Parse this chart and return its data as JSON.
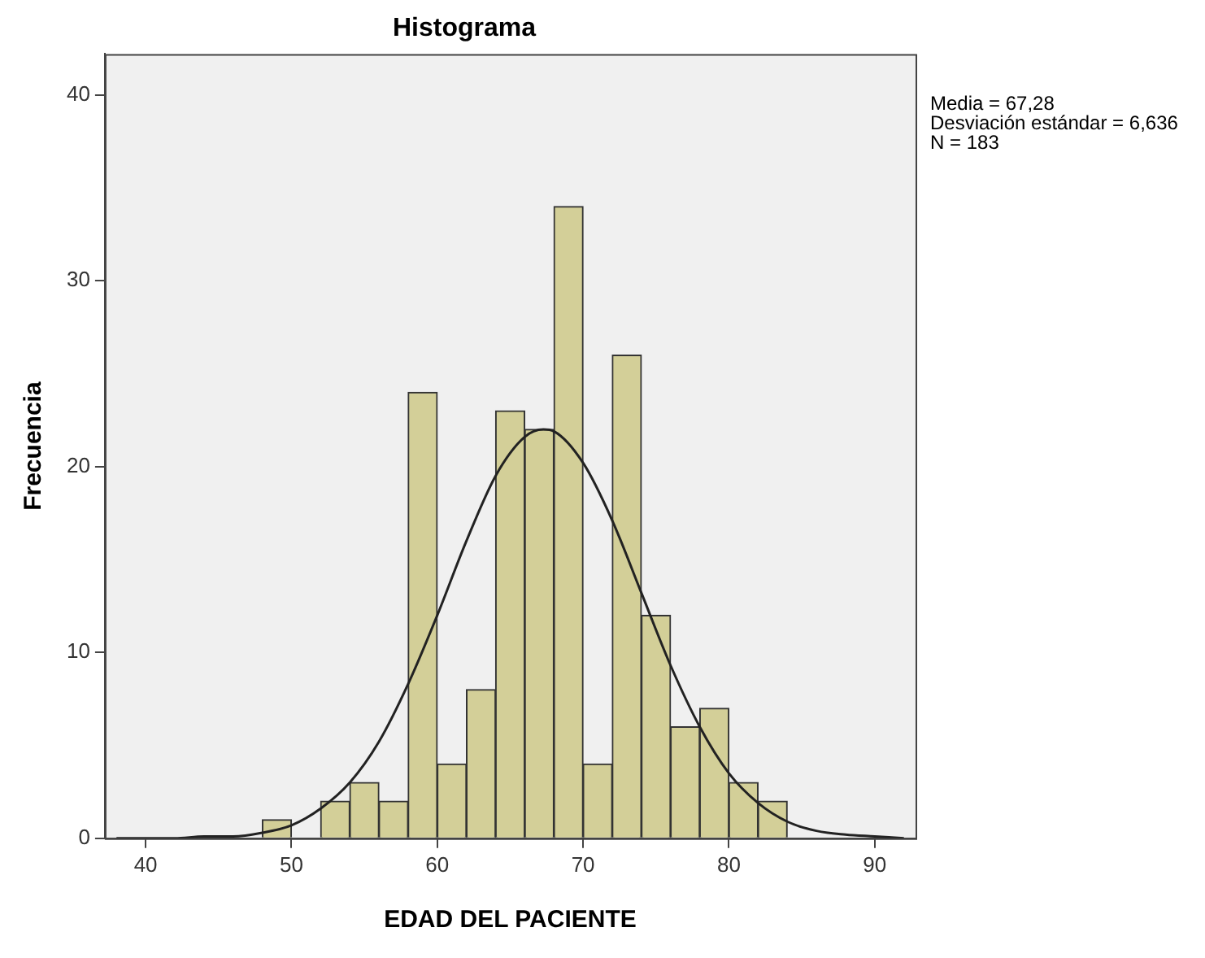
{
  "chart_data": {
    "type": "histogram",
    "title": "Histograma",
    "xlabel": "EDAD DEL PACIENTE",
    "ylabel": "Frecuencia",
    "annotations": [
      "Media = 67,28",
      "Desviación estándar = 6,636",
      "N = 183"
    ],
    "series": [
      {
        "color": "#d3cf98",
        "bins": [
          48,
          50,
          52,
          54,
          56,
          58,
          60,
          62,
          64,
          66,
          68,
          70,
          72,
          74,
          76,
          78,
          80,
          82,
          84
        ],
        "values": [
          1,
          0,
          2,
          3,
          2,
          24,
          4,
          8,
          23,
          22,
          34,
          4,
          26,
          12,
          6,
          7,
          3,
          2
        ]
      },
      {
        "type": "line",
        "color": "#222222",
        "x": [
          38,
          40,
          42,
          44,
          46,
          48,
          50,
          52,
          54,
          56,
          58,
          60,
          62,
          64,
          66,
          67.28,
          68,
          70,
          72,
          74,
          76,
          78,
          80,
          82,
          84,
          86,
          88,
          90,
          92
        ],
        "values": [
          0,
          0,
          0,
          0.1,
          0.1,
          0.3,
          0.7,
          1.6,
          3,
          5.2,
          8.3,
          12,
          16,
          19.5,
          21.6,
          22,
          21.9,
          20.2,
          17.1,
          13.2,
          9.3,
          6,
          3.5,
          1.9,
          0.9,
          0.4,
          0.2,
          0.1,
          0
        ]
      }
    ],
    "xlim": [
      37.2,
      92.8
    ],
    "xticks": [
      40,
      50,
      60,
      70,
      80,
      90
    ],
    "ylim": [
      0,
      42.2
    ],
    "yticks": [
      0,
      10,
      20,
      30,
      40
    ],
    "grid": false,
    "legend": false
  }
}
